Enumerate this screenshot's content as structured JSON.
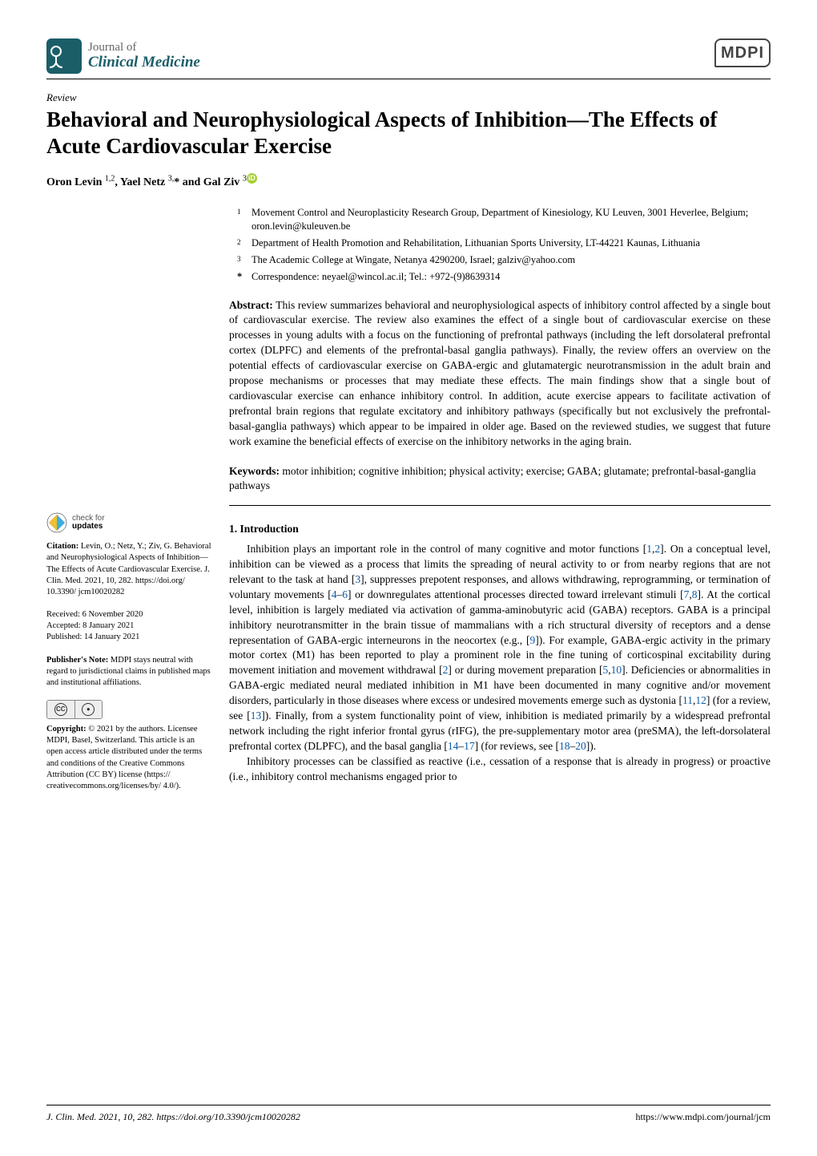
{
  "journal": {
    "line1": "Journal of",
    "line2": "Clinical Medicine"
  },
  "publisher_logo": "MDPI",
  "article_type": "Review",
  "title": "Behavioral and Neurophysiological Aspects of Inhibition—The Effects of Acute Cardiovascular Exercise",
  "authors_html": "Oron Levin <sup>1,2</sup>, Yael Netz <sup>3,</sup>* and Gal Ziv <sup>3</sup>",
  "affiliations": [
    {
      "num": "1",
      "text": "Movement Control and Neuroplasticity Research Group, Department of Kinesiology, KU Leuven, 3001 Heverlee, Belgium; oron.levin@kuleuven.be"
    },
    {
      "num": "2",
      "text": "Department of Health Promotion and Rehabilitation, Lithuanian Sports University, LT-44221 Kaunas, Lithuania"
    },
    {
      "num": "3",
      "text": "The Academic College at Wingate, Netanya 4290200, Israel; galziv@yahoo.com"
    }
  ],
  "correspondence": {
    "marker": "*",
    "text": "Correspondence: neyael@wincol.ac.il; Tel.: +972-(9)8639314"
  },
  "abstract_label": "Abstract:",
  "abstract": "This review summarizes behavioral and neurophysiological aspects of inhibitory control affected by a single bout of cardiovascular exercise. The review also examines the effect of a single bout of cardiovascular exercise on these processes in young adults with a focus on the functioning of prefrontal pathways (including the left dorsolateral prefrontal cortex (DLPFC) and elements of the prefrontal-basal ganglia pathways). Finally, the review offers an overview on the potential effects of cardiovascular exercise on GABA-ergic and glutamatergic neurotransmission in the adult brain and propose mechanisms or processes that may mediate these effects. The main findings show that a single bout of cardiovascular exercise can enhance inhibitory control. In addition, acute exercise appears to facilitate activation of prefrontal brain regions that regulate excitatory and inhibitory pathways (specifically but not exclusively the prefrontal-basal-ganglia pathways) which appear to be impaired in older age. Based on the reviewed studies, we suggest that future work examine the beneficial effects of exercise on the inhibitory networks in the aging brain.",
  "keywords_label": "Keywords:",
  "keywords": "motor inhibition; cognitive inhibition; physical activity; exercise; GABA; glutamate; prefrontal-basal-ganglia pathways",
  "section1": {
    "heading": "1. Introduction",
    "p1_parts": [
      "Inhibition plays an important role in the control of many cognitive and motor functions [",
      "1",
      ",",
      "2",
      "]. On a conceptual level, inhibition can be viewed as a process that limits the spreading of neural activity to or from nearby regions that are not relevant to the task at hand [",
      "3",
      "], suppresses prepotent responses, and allows withdrawing, reprogramming, or termination of voluntary movements [",
      "4",
      "–",
      "6",
      "] or downregulates attentional processes directed toward irrelevant stimuli [",
      "7",
      ",",
      "8",
      "]. At the cortical level, inhibition is largely mediated via activation of gamma-aminobutyric acid (GABA) receptors. GABA is a principal inhibitory neurotransmitter in the brain tissue of mammalians with a rich structural diversity of receptors and a dense representation of GABA-ergic interneurons in the neocortex (e.g., [",
      "9",
      "]). For example, GABA-ergic activity in the primary motor cortex (M1) has been reported to play a prominent role in the fine tuning of corticospinal excitability during movement initiation and movement withdrawal [",
      "2",
      "] or during movement preparation [",
      "5",
      ",",
      "10",
      "]. Deficiencies or abnormalities in GABA-ergic mediated neural mediated inhibition in M1 have been documented in many cognitive and/or movement disorders, particularly in those diseases where excess or undesired movements emerge such as dystonia [",
      "11",
      ",",
      "12",
      "] (for a review, see [",
      "13",
      "]). Finally, from a system functionality point of view, inhibition is mediated primarily by a widespread prefrontal network including the right inferior frontal gyrus (rIFG), the pre-supplementary motor area (preSMA), the left-dorsolateral prefrontal cortex (DLPFC), and the basal ganglia [",
      "14",
      "–",
      "17",
      "] (for reviews, see [",
      "18",
      "–",
      "20",
      "])."
    ],
    "p2": "Inhibitory processes can be classified as reactive (i.e., cessation of a response that is already in progress) or proactive (i.e., inhibitory control mechanisms engaged prior to"
  },
  "sidebar": {
    "check_updates": {
      "l1": "check for",
      "l2": "updates"
    },
    "citation_label": "Citation:",
    "citation": "Levin, O.; Netz, Y.; Ziv, G. Behavioral and Neurophysiological Aspects of Inhibition—The Effects of Acute Cardiovascular Exercise. J. Clin. Med. 2021, 10, 282. https://doi.org/ 10.3390/ jcm10020282",
    "received": "Received: 6 November 2020",
    "accepted": "Accepted: 8 January 2021",
    "published": "Published: 14 January 2021",
    "pubnote_label": "Publisher's Note:",
    "pubnote": "MDPI stays neutral with regard to jurisdictional claims in published maps and institutional affiliations.",
    "copyright_label": "Copyright:",
    "copyright": "© 2021 by the authors. Licensee MDPI, Basel, Switzerland. This article is an open access article distributed under the terms and conditions of the Creative Commons Attribution (CC BY) license (https:// creativecommons.org/licenses/by/ 4.0/)."
  },
  "footer": {
    "left": "J. Clin. Med. 2021, 10, 282. https://doi.org/10.3390/jcm10020282",
    "right": "https://www.mdpi.com/journal/jcm"
  },
  "colors": {
    "journal_accent": "#1b5e68",
    "ref_link": "#0b5aa6",
    "orcid": "#a6ce39"
  }
}
